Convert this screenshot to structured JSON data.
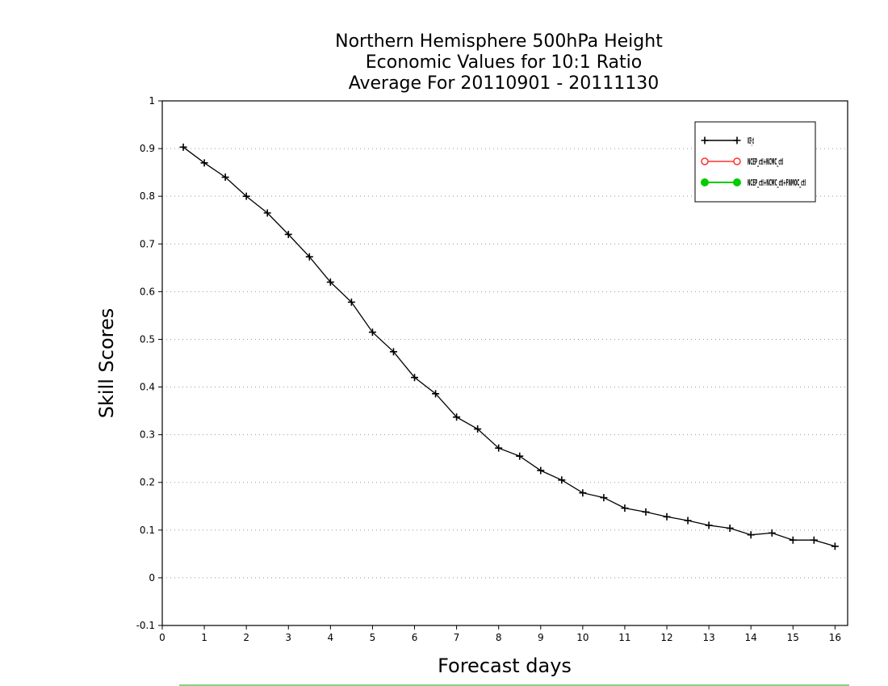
{
  "chart_data": {
    "type": "line",
    "title": [
      "Northern Hemisphere 500hPa Height",
      "Economic Values for 10:1 Ratio",
      "Average For 20110901 - 20111130"
    ],
    "xlabel": "Forecast days",
    "ylabel": "Skill Scores",
    "xlim": [
      0,
      16.3
    ],
    "ylim": [
      -0.1,
      1
    ],
    "xticks": [
      "0",
      "1",
      "2",
      "3",
      "4",
      "5",
      "6",
      "7",
      "8",
      "9",
      "10",
      "11",
      "12",
      "13",
      "14",
      "15",
      "16"
    ],
    "yticks": [
      "-0.1",
      "0",
      "0.1",
      "0.2",
      "0.3",
      "0.4",
      "0.5",
      "0.6",
      "0.7",
      "0.8",
      "0.9",
      "1"
    ],
    "grid": "dotted horizontal",
    "legend_position": "top-right",
    "series": [
      {
        "name": "NCEP_ctl",
        "color": "#000000",
        "marker": "plus",
        "x": [
          0.5,
          1,
          1.5,
          2,
          2.5,
          3,
          3.5,
          4,
          4.5,
          5,
          5.5,
          6,
          6.5,
          7,
          7.5,
          8,
          8.5,
          9,
          9.5,
          10,
          10.5,
          11,
          11.5,
          12,
          12.5,
          13,
          13.5,
          14,
          14.5,
          15,
          15.5,
          16
        ],
        "y": [
          0.903,
          0.87,
          0.84,
          0.8,
          0.765,
          0.72,
          0.673,
          0.62,
          0.578,
          0.515,
          0.474,
          0.42,
          0.386,
          0.337,
          0.312,
          0.272,
          0.255,
          0.225,
          0.205,
          0.178,
          0.168,
          0.146,
          0.138,
          0.128,
          0.12,
          0.11,
          0.104,
          0.09,
          0.094,
          0.079,
          0.079,
          0.066
        ]
      },
      {
        "name": "NCEP_ctl+NCMC_ctl",
        "color": "#ff3030",
        "marker": "circle-open",
        "x": [],
        "y": []
      },
      {
        "name": "NCEP_ctl+NCMC_ctl+FNMOC_ctl",
        "color": "#00cc00",
        "marker": "circle-filled",
        "x": [],
        "y": []
      }
    ]
  }
}
